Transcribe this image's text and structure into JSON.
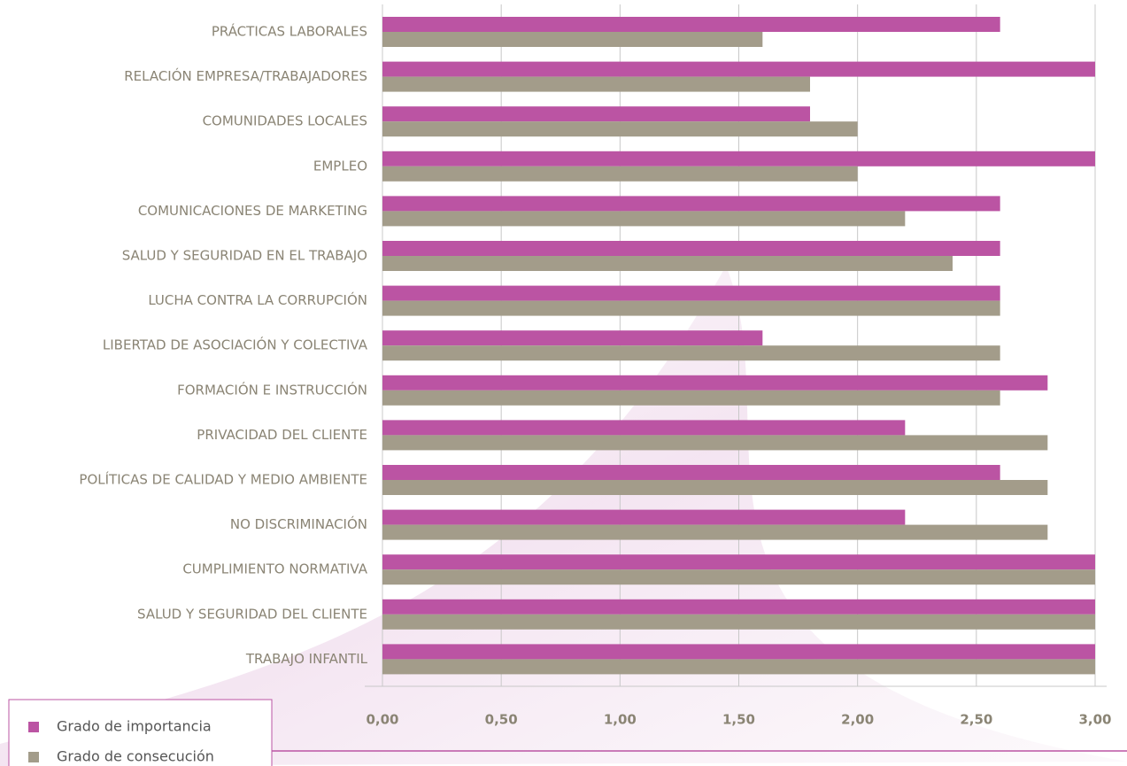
{
  "chart_data": {
    "type": "bar",
    "orientation": "horizontal",
    "categories": [
      "PRÁCTICAS LABORALES",
      "RELACIÓN EMPRESA/TRABAJADORES",
      "COMUNIDADES LOCALES",
      "EMPLEO",
      "COMUNICACIONES DE MARKETING",
      "SALUD Y SEGURIDAD EN EL TRABAJO",
      "LUCHA CONTRA LA CORRUPCIÓN",
      "LIBERTAD DE ASOCIACIÓN Y COLECTIVA",
      "FORMACIÓN E INSTRUCCIÓN",
      "PRIVACIDAD DEL CLIENTE",
      "POLÍTICAS DE CALIDAD Y MEDIO AMBIENTE",
      "NO DISCRIMINACIÓN",
      "CUMPLIMIENTO NORMATIVA",
      "SALUD Y SEGURIDAD DEL CLIENTE",
      "TRABAJO INFANTIL"
    ],
    "series": [
      {
        "name": "Grado de importancia",
        "color": "#bb54a3",
        "values": [
          2.6,
          3.0,
          1.8,
          3.0,
          2.6,
          2.6,
          2.6,
          1.6,
          2.8,
          2.2,
          2.6,
          2.2,
          3.0,
          3.0,
          3.0
        ]
      },
      {
        "name": "Grado de consecución",
        "color": "#a39c8a",
        "values": [
          1.6,
          1.8,
          2.0,
          2.0,
          2.2,
          2.4,
          2.6,
          2.6,
          2.6,
          2.8,
          2.8,
          2.8,
          3.0,
          3.0,
          3.0
        ]
      }
    ],
    "xlim": [
      0,
      3
    ],
    "xticks": [
      {
        "value": 0,
        "label": "0,00"
      },
      {
        "value": 0.5,
        "label": "0,50"
      },
      {
        "value": 1,
        "label": "1,00"
      },
      {
        "value": 1.5,
        "label": "1,50"
      },
      {
        "value": 2,
        "label": "2,00"
      },
      {
        "value": 2.5,
        "label": "2,50"
      },
      {
        "value": 3,
        "label": "3,00"
      }
    ],
    "grid": true,
    "legend": "bottom-left"
  }
}
